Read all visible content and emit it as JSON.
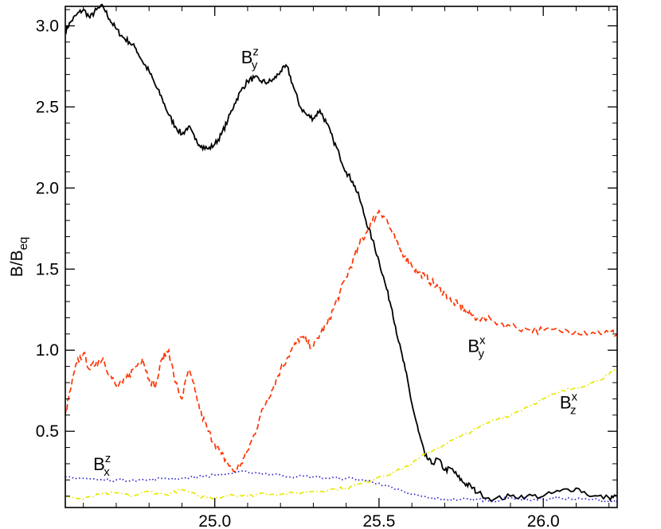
{
  "chart_data": {
    "type": "line",
    "title": "",
    "xlabel": "",
    "ylabel": "B/B",
    "ylabel_sub": "eq",
    "xlim": [
      24.545,
      26.225
    ],
    "ylim": [
      0.03,
      3.12
    ],
    "x_ticks": [
      {
        "value": 25.0,
        "label": "25.0"
      },
      {
        "value": 25.5,
        "label": "25.5"
      },
      {
        "value": 26.0,
        "label": "26.0"
      }
    ],
    "y_ticks": [
      {
        "value": 0.5,
        "label": "0.5"
      },
      {
        "value": 1.0,
        "label": "1.0"
      },
      {
        "value": 1.5,
        "label": "1.5"
      },
      {
        "value": 2.0,
        "label": "2.0"
      },
      {
        "value": 2.5,
        "label": "2.5"
      },
      {
        "value": 3.0,
        "label": "3.0"
      }
    ],
    "grid": false,
    "series": [
      {
        "label_main": "B",
        "label_sub": "y",
        "label_sup": "z",
        "color": "#000000",
        "style": "solid",
        "label_at": [
          25.08,
          2.77
        ],
        "x": [
          24.545,
          24.56,
          24.58,
          24.6,
          24.62,
          24.64,
          24.66,
          24.68,
          24.7,
          24.72,
          24.74,
          24.76,
          24.78,
          24.8,
          24.82,
          24.84,
          24.86,
          24.88,
          24.9,
          24.92,
          24.94,
          24.96,
          24.98,
          25.0,
          25.02,
          25.04,
          25.06,
          25.08,
          25.1,
          25.12,
          25.14,
          25.16,
          25.18,
          25.2,
          25.22,
          25.24,
          25.26,
          25.28,
          25.3,
          25.32,
          25.34,
          25.36,
          25.38,
          25.4,
          25.42,
          25.44,
          25.46,
          25.48,
          25.5,
          25.52,
          25.54,
          25.56,
          25.58,
          25.6,
          25.62,
          25.64,
          25.66,
          25.68,
          25.7,
          25.72,
          25.74,
          25.76,
          25.78,
          25.8,
          25.85,
          25.9,
          25.95,
          26.0,
          26.05,
          26.1,
          26.15,
          26.2,
          26.225
        ],
        "y": [
          2.97,
          3.02,
          3.07,
          3.1,
          3.05,
          3.1,
          3.12,
          3.04,
          2.98,
          2.93,
          2.9,
          2.86,
          2.78,
          2.72,
          2.63,
          2.55,
          2.45,
          2.38,
          2.33,
          2.38,
          2.3,
          2.26,
          2.24,
          2.27,
          2.33,
          2.42,
          2.52,
          2.6,
          2.66,
          2.68,
          2.66,
          2.65,
          2.67,
          2.72,
          2.75,
          2.62,
          2.5,
          2.45,
          2.43,
          2.48,
          2.4,
          2.3,
          2.2,
          2.1,
          2.04,
          1.94,
          1.8,
          1.68,
          1.55,
          1.4,
          1.25,
          1.05,
          0.88,
          0.67,
          0.5,
          0.35,
          0.3,
          0.33,
          0.26,
          0.27,
          0.22,
          0.18,
          0.16,
          0.12,
          0.08,
          0.1,
          0.1,
          0.1,
          0.13,
          0.15,
          0.1,
          0.09,
          0.1
        ]
      },
      {
        "label_main": "B",
        "label_sub": "y",
        "label_sup": "x",
        "color": "#ff3300",
        "style": "dashed",
        "label_at": [
          25.77,
          0.99
        ],
        "x": [
          24.545,
          24.56,
          24.58,
          24.6,
          24.62,
          24.64,
          24.66,
          24.68,
          24.7,
          24.72,
          24.74,
          24.76,
          24.78,
          24.8,
          24.82,
          24.84,
          24.86,
          24.88,
          24.9,
          24.92,
          24.94,
          24.96,
          24.98,
          25.0,
          25.02,
          25.04,
          25.06,
          25.08,
          25.1,
          25.12,
          25.14,
          25.16,
          25.18,
          25.2,
          25.22,
          25.24,
          25.26,
          25.28,
          25.3,
          25.32,
          25.34,
          25.36,
          25.38,
          25.4,
          25.42,
          25.44,
          25.46,
          25.48,
          25.5,
          25.52,
          25.54,
          25.56,
          25.58,
          25.6,
          25.62,
          25.64,
          25.66,
          25.68,
          25.7,
          25.72,
          25.74,
          25.76,
          25.78,
          25.8,
          25.85,
          25.9,
          25.95,
          26.0,
          26.05,
          26.1,
          26.15,
          26.2,
          26.225
        ],
        "y": [
          0.6,
          0.75,
          0.92,
          0.98,
          0.88,
          0.93,
          0.95,
          0.85,
          0.78,
          0.8,
          0.85,
          0.9,
          0.95,
          0.82,
          0.78,
          0.95,
          1.0,
          0.8,
          0.7,
          0.88,
          0.75,
          0.6,
          0.5,
          0.42,
          0.36,
          0.3,
          0.25,
          0.3,
          0.38,
          0.48,
          0.6,
          0.7,
          0.78,
          0.88,
          0.95,
          1.02,
          1.08,
          1.05,
          1.02,
          1.1,
          1.15,
          1.25,
          1.35,
          1.45,
          1.55,
          1.65,
          1.72,
          1.8,
          1.86,
          1.82,
          1.72,
          1.63,
          1.58,
          1.52,
          1.48,
          1.45,
          1.42,
          1.38,
          1.35,
          1.3,
          1.28,
          1.25,
          1.22,
          1.2,
          1.18,
          1.15,
          1.13,
          1.12,
          1.12,
          1.12,
          1.11,
          1.11,
          1.1
        ]
      },
      {
        "label_main": "B",
        "label_sub": "z",
        "label_sup": "x",
        "color": "#e8e800",
        "style": "dashdot",
        "label_at": [
          26.05,
          0.64
        ],
        "x": [
          24.545,
          24.6,
          24.65,
          24.7,
          24.75,
          24.8,
          24.85,
          24.9,
          24.95,
          25.0,
          25.05,
          25.1,
          25.15,
          25.2,
          25.25,
          25.3,
          25.35,
          25.4,
          25.45,
          25.5,
          25.55,
          25.6,
          25.65,
          25.7,
          25.75,
          25.8,
          25.85,
          25.9,
          25.95,
          26.0,
          26.05,
          26.1,
          26.15,
          26.2,
          26.225
        ],
        "y": [
          0.1,
          0.08,
          0.11,
          0.12,
          0.1,
          0.13,
          0.11,
          0.14,
          0.1,
          0.09,
          0.11,
          0.1,
          0.12,
          0.11,
          0.12,
          0.13,
          0.14,
          0.15,
          0.18,
          0.22,
          0.25,
          0.3,
          0.37,
          0.42,
          0.47,
          0.52,
          0.57,
          0.6,
          0.65,
          0.7,
          0.74,
          0.77,
          0.8,
          0.85,
          0.88
        ]
      },
      {
        "label_main": "B",
        "label_sub": "x",
        "label_sup": "z",
        "color": "#2a22cc",
        "style": "dotted",
        "label_at": [
          24.63,
          0.26
        ],
        "x": [
          24.545,
          24.6,
          24.65,
          24.7,
          24.75,
          24.8,
          24.85,
          24.9,
          24.95,
          25.0,
          25.05,
          25.1,
          25.15,
          25.2,
          25.25,
          25.3,
          25.35,
          25.4,
          25.45,
          25.5,
          25.55,
          25.6,
          25.65,
          25.7,
          25.75,
          25.8,
          25.85,
          25.9,
          25.95,
          26.0,
          26.05,
          26.1,
          26.15,
          26.2,
          26.225
        ],
        "y": [
          0.22,
          0.21,
          0.2,
          0.2,
          0.2,
          0.2,
          0.21,
          0.21,
          0.22,
          0.23,
          0.24,
          0.25,
          0.24,
          0.23,
          0.22,
          0.22,
          0.21,
          0.21,
          0.2,
          0.18,
          0.14,
          0.11,
          0.09,
          0.08,
          0.08,
          0.08,
          0.07,
          0.09,
          0.08,
          0.08,
          0.09,
          0.08,
          0.08,
          0.07,
          0.07
        ]
      }
    ]
  }
}
